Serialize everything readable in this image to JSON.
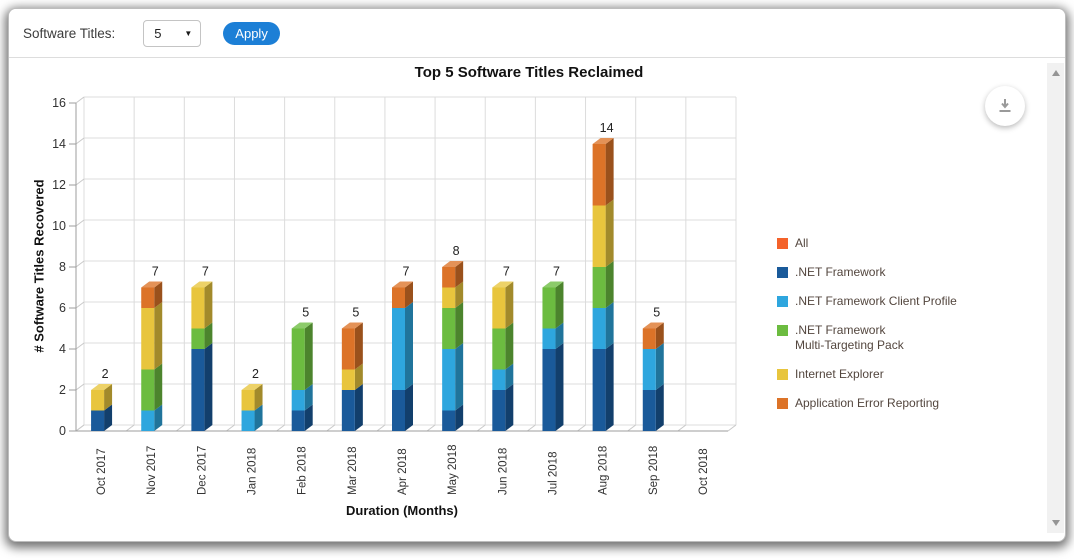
{
  "toolbar": {
    "label": "Software Titles:",
    "select_value": "5",
    "apply_label": "Apply"
  },
  "chart_data": {
    "type": "bar",
    "stacked": true,
    "style": "3d-column",
    "title": "Top 5 Software Titles Reclaimed",
    "xlabel": "Duration (Months)",
    "ylabel": "# Software Titles Recovered",
    "ylim": [
      0,
      16
    ],
    "ytick_step": 2,
    "yticks": [
      0,
      2,
      4,
      6,
      8,
      10,
      12,
      14,
      16
    ],
    "grid": true,
    "legend_position": "right",
    "categories": [
      "Oct 2017",
      "Nov 2017",
      "Dec 2017",
      "Jan 2018",
      "Feb 2018",
      "Mar 2018",
      "Apr 2018",
      "May 2018",
      "Jun 2018",
      "Jul 2018",
      "Aug 2018",
      "Sep 2018",
      "Oct 2018"
    ],
    "series": [
      {
        "name": "All",
        "color": "#F4622A",
        "values": [
          0,
          0,
          0,
          0,
          0,
          0,
          0,
          0,
          0,
          0,
          0,
          0,
          0
        ]
      },
      {
        "name": ".NET Framework",
        "color": "#1A5A9A",
        "values": [
          1,
          0,
          4,
          0,
          1,
          2,
          2,
          1,
          2,
          4,
          4,
          2,
          0
        ]
      },
      {
        "name": ".NET Framework Client Profile",
        "color": "#2EA6DE",
        "values": [
          0,
          1,
          0,
          1,
          1,
          0,
          4,
          3,
          1,
          1,
          2,
          2,
          0
        ]
      },
      {
        "name": ".NET Framework Multi-Targeting Pack",
        "color": "#6CBC40",
        "values": [
          0,
          2,
          1,
          0,
          3,
          0,
          0,
          2,
          2,
          2,
          2,
          0,
          0
        ]
      },
      {
        "name": "Internet Explorer",
        "color": "#E8C53D",
        "values": [
          1,
          3,
          2,
          1,
          0,
          1,
          0,
          1,
          2,
          0,
          3,
          0,
          0
        ]
      },
      {
        "name": "Application Error Reporting",
        "color": "#DC7328",
        "values": [
          0,
          1,
          0,
          0,
          0,
          2,
          1,
          1,
          0,
          0,
          3,
          1,
          0
        ]
      }
    ],
    "totals": [
      2,
      7,
      7,
      2,
      5,
      5,
      7,
      8,
      7,
      7,
      14,
      5,
      0
    ]
  },
  "legend": {
    "items": [
      {
        "label": "All",
        "color": "#F4622A"
      },
      {
        "label": ".NET Framework",
        "color": "#1A5A9A"
      },
      {
        "label": ".NET Framework Client Profile",
        "color": "#2EA6DE"
      },
      {
        "label": ".NET Framework\nMulti-Targeting Pack",
        "color": "#6CBC40"
      },
      {
        "label": "Internet Explorer",
        "color": "#E8C53D"
      },
      {
        "label": "Application Error Reporting",
        "color": "#DC7328"
      }
    ]
  },
  "colors": {
    "apply_button": "#1c7fd6",
    "grid_line": "#dcdcdc",
    "axis_line": "#9e9e9e",
    "wall_edge": "#c9c9c9",
    "axis_text": "#333333",
    "data_label": "#222222",
    "legend_text": "#53463e"
  }
}
